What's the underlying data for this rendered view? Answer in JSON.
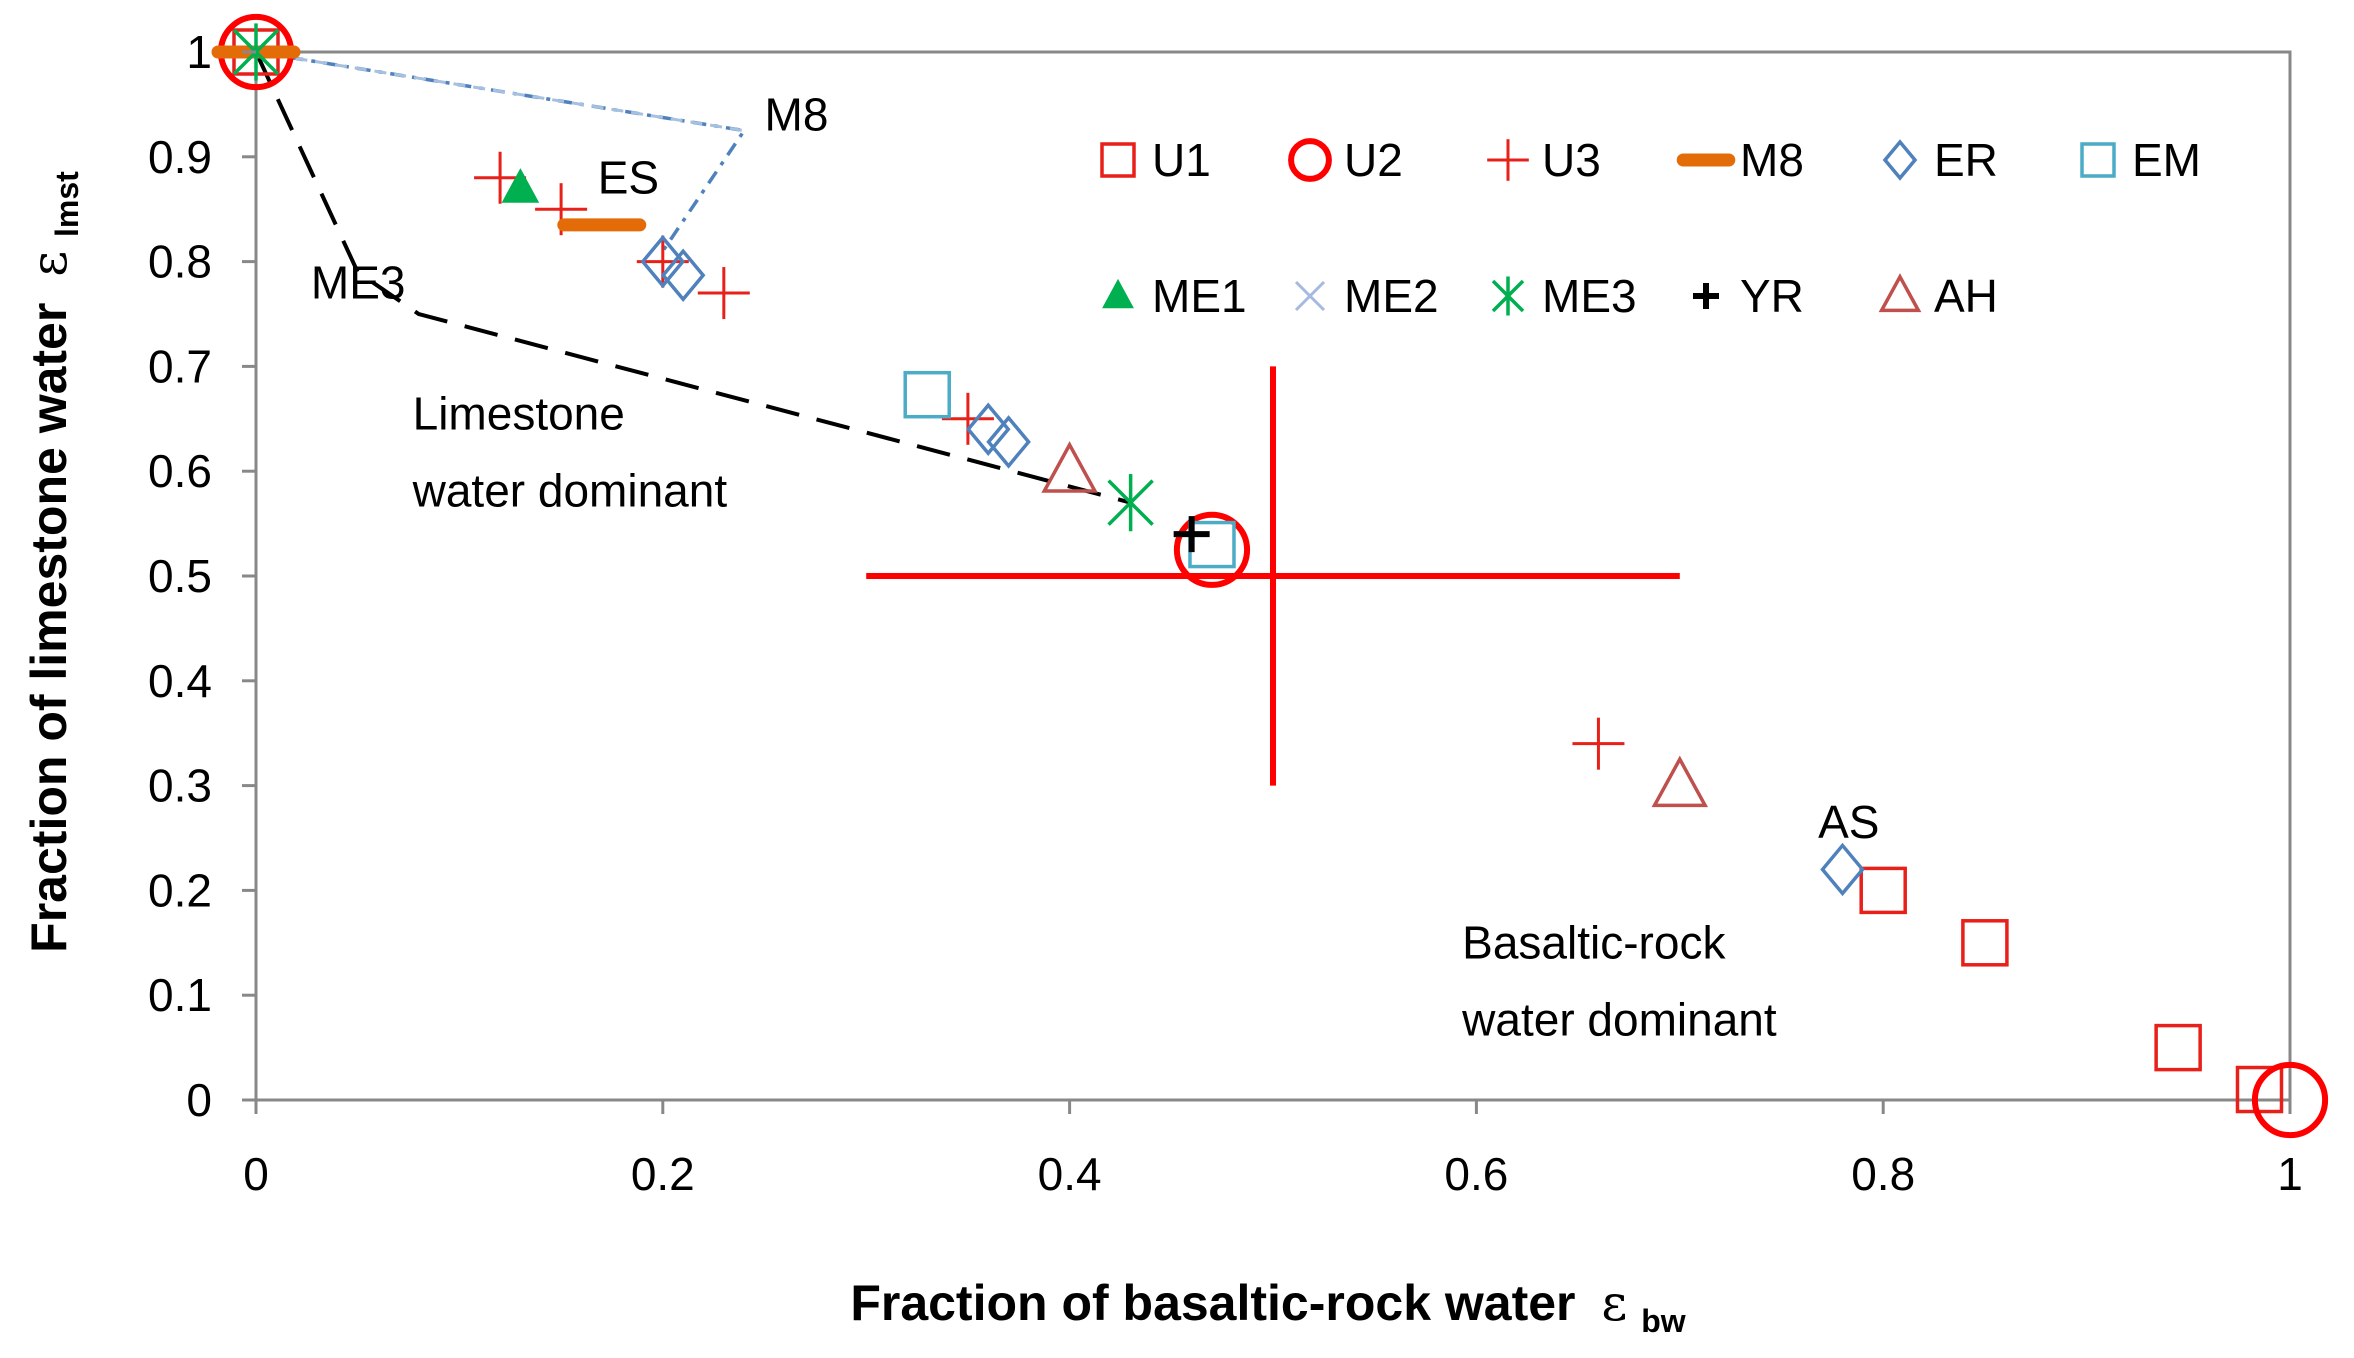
{
  "chart_data": {
    "type": "scatter",
    "xlabel": "Fraction of basaltic-rock water",
    "xlabel_symbol": "ε",
    "xlabel_subscript": "bw",
    "ylabel": "Fraction of limestone water",
    "ylabel_symbol": "ε",
    "ylabel_subscript": "lmst",
    "xlim": [
      0,
      1
    ],
    "ylim": [
      0,
      1
    ],
    "x_ticks": [
      0,
      0.2,
      0.4,
      0.6,
      0.8,
      1
    ],
    "x_tick_labels": [
      "0",
      "0.2",
      "0.4",
      "0.6",
      "0.8",
      "1"
    ],
    "y_ticks": [
      0,
      0.1,
      0.2,
      0.3,
      0.4,
      0.5,
      0.6,
      0.7,
      0.8,
      0.9,
      1
    ],
    "y_tick_labels": [
      "0",
      "0.1",
      "0.2",
      "0.3",
      "0.4",
      "0.5",
      "0.6",
      "0.7",
      "0.8",
      "0.9",
      "1"
    ],
    "grid": false,
    "legend_position": "top-right",
    "series": [
      {
        "name": "U1",
        "marker": "square",
        "color": "#e8201a",
        "points": [
          [
            0,
            1
          ],
          [
            0.8,
            0.2
          ],
          [
            0.85,
            0.15
          ],
          [
            0.945,
            0.05
          ],
          [
            0.985,
            0.01
          ]
        ]
      },
      {
        "name": "U2",
        "marker": "circle",
        "color": "#ff0000",
        "points": [
          [
            0,
            1
          ],
          [
            0.47,
            0.525
          ],
          [
            1.0,
            0.0
          ]
        ]
      },
      {
        "name": "U3",
        "marker": "plus",
        "color": "#e8201a",
        "points": [
          [
            0.12,
            0.88
          ],
          [
            0.15,
            0.85
          ],
          [
            0.2,
            0.8
          ],
          [
            0.23,
            0.77
          ],
          [
            0.35,
            0.65
          ],
          [
            0.66,
            0.34
          ]
        ]
      },
      {
        "name": "M8",
        "marker": "dash",
        "color": "#e36c09",
        "points": [
          [
            0,
            1
          ],
          [
            0.17,
            0.835
          ]
        ]
      },
      {
        "name": "ER",
        "marker": "diamond",
        "color": "#4f81bd",
        "points": [
          [
            0.2,
            0.8
          ],
          [
            0.21,
            0.787
          ],
          [
            0.36,
            0.64
          ],
          [
            0.37,
            0.628
          ],
          [
            0.78,
            0.22
          ]
        ]
      },
      {
        "name": "EM",
        "marker": "square",
        "color": "#4bacc6",
        "points": [
          [
            0.33,
            0.673
          ],
          [
            0.47,
            0.53
          ]
        ]
      },
      {
        "name": "ME1",
        "marker": "triangle-filled",
        "color": "#00b050",
        "points": [
          [
            0.13,
            0.87
          ]
        ]
      },
      {
        "name": "ME2",
        "marker": "x",
        "color": "#a6b9e0",
        "points": [
          [
            0,
            1
          ]
        ]
      },
      {
        "name": "ME3",
        "marker": "star",
        "color": "#00b050",
        "points": [
          [
            0,
            1
          ],
          [
            0.43,
            0.57
          ]
        ]
      },
      {
        "name": "YR",
        "marker": "plus-bold",
        "color": "#000000",
        "points": [
          [
            0.46,
            0.54
          ]
        ]
      },
      {
        "name": "AH",
        "marker": "triangle",
        "color": "#c0504d",
        "points": [
          [
            0.4,
            0.6
          ],
          [
            0.7,
            0.3
          ]
        ]
      }
    ],
    "lines": [
      {
        "name": "ME3-mixing",
        "style": "dashed",
        "color": "#000000",
        "points": [
          [
            0,
            1
          ],
          [
            0.05,
            0.79
          ],
          [
            0.08,
            0.75
          ],
          [
            0.43,
            0.57
          ]
        ]
      },
      {
        "name": "M8-dashdot",
        "style": "dashdot",
        "color": "#4f81bd",
        "points": [
          [
            0,
            1
          ],
          [
            0.24,
            0.925
          ],
          [
            0.2,
            0.81
          ]
        ]
      },
      {
        "name": "M8-light",
        "style": "dashed-light",
        "color": "#a6c0e0",
        "points": [
          [
            0,
            1
          ],
          [
            0.24,
            0.925
          ]
        ]
      }
    ],
    "center_cross": {
      "color": "#ff0000",
      "center": [
        0.5,
        0.5
      ],
      "x_range": [
        0.3,
        0.7
      ],
      "y_range": [
        0.3,
        0.7
      ]
    },
    "annotations": [
      {
        "text": "M8",
        "x": 0.25,
        "y": 0.925
      },
      {
        "text": "ES",
        "x": 0.168,
        "y": 0.865
      },
      {
        "text": "ME3",
        "x": 0.027,
        "y": 0.765
      },
      {
        "text": "AS",
        "x": 0.768,
        "y": 0.25
      },
      {
        "text_lines": [
          "Limestone",
          "water dominant"
        ],
        "x": 0.077,
        "y": 0.64
      },
      {
        "text_lines": [
          "Basaltic-rock",
          "water dominant"
        ],
        "x": 0.593,
        "y": 0.135
      }
    ]
  },
  "colors": {
    "axis": "#888888",
    "text": "#000000"
  }
}
